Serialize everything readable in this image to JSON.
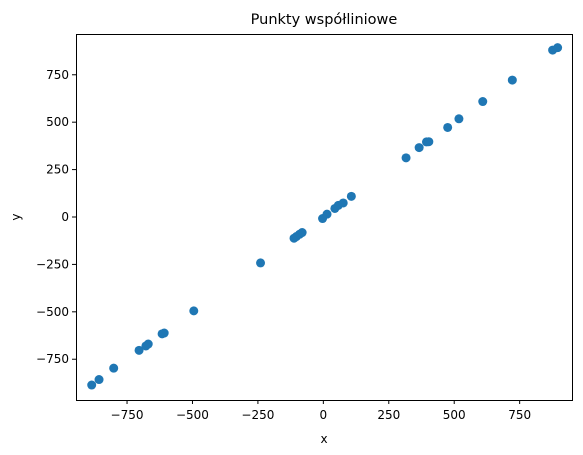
{
  "chart_data": {
    "type": "scatter",
    "title": "Punkty współliniowe",
    "xlabel": "x",
    "ylabel": "y",
    "xlim": [
      -945,
      950
    ],
    "ylim": [
      -965,
      965
    ],
    "xticks": [
      -750,
      -500,
      -250,
      0,
      250,
      500,
      750
    ],
    "xtick_labels": [
      "−750",
      "−500",
      "−250",
      "0",
      "250",
      "500",
      "750"
    ],
    "yticks": [
      -750,
      -500,
      -250,
      0,
      250,
      500,
      750
    ],
    "ytick_labels": [
      "−750",
      "−500",
      "−250",
      "0",
      "250",
      "500",
      "750"
    ],
    "grid": false,
    "color": "#1f77b4",
    "points": [
      {
        "x": -885,
        "y": -886
      },
      {
        "x": -857,
        "y": -857
      },
      {
        "x": -801,
        "y": -797
      },
      {
        "x": -704,
        "y": -703
      },
      {
        "x": -678,
        "y": -680
      },
      {
        "x": -669,
        "y": -670
      },
      {
        "x": -616,
        "y": -616
      },
      {
        "x": -608,
        "y": -612
      },
      {
        "x": -495,
        "y": -495
      },
      {
        "x": -240,
        "y": -242
      },
      {
        "x": -112,
        "y": -112
      },
      {
        "x": -103,
        "y": -103
      },
      {
        "x": -91,
        "y": -91
      },
      {
        "x": -81,
        "y": -82
      },
      {
        "x": -3,
        "y": -8
      },
      {
        "x": 14,
        "y": 15
      },
      {
        "x": 44,
        "y": 45
      },
      {
        "x": 57,
        "y": 61
      },
      {
        "x": 76,
        "y": 74
      },
      {
        "x": 107,
        "y": 109
      },
      {
        "x": 316,
        "y": 312
      },
      {
        "x": 366,
        "y": 366
      },
      {
        "x": 394,
        "y": 396
      },
      {
        "x": 403,
        "y": 397
      },
      {
        "x": 475,
        "y": 472
      },
      {
        "x": 518,
        "y": 518
      },
      {
        "x": 609,
        "y": 609
      },
      {
        "x": 722,
        "y": 722
      },
      {
        "x": 876,
        "y": 880
      },
      {
        "x": 895,
        "y": 893
      }
    ]
  }
}
